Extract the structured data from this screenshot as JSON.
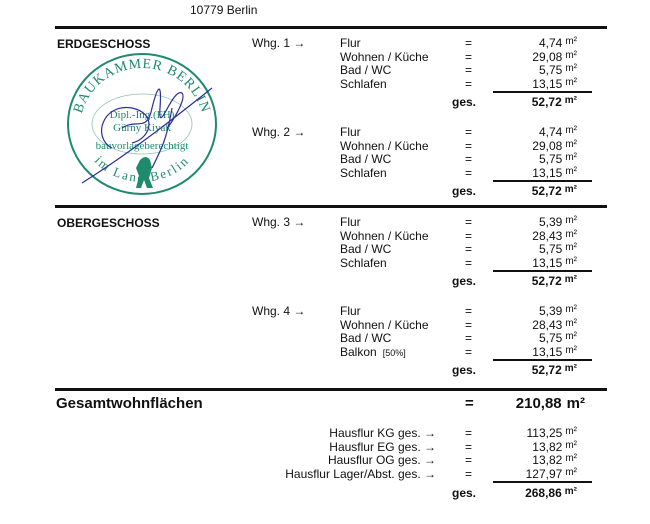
{
  "header": {
    "address": "10779 Berlin"
  },
  "sections": [
    {
      "title": "ERDGESCHOSS",
      "units": [
        {
          "label": "Whg. 1 →",
          "rooms": [
            [
              "Flur",
              "4,74"
            ],
            [
              "Wohnen / Küche",
              "29,08"
            ],
            [
              "Bad / WC",
              "5,75"
            ],
            [
              "Schlafen",
              "13,15"
            ]
          ],
          "total": "52,72"
        },
        {
          "label": "Whg. 2 →",
          "rooms": [
            [
              "Flur",
              "4,74"
            ],
            [
              "Wohnen / Küche",
              "29,08"
            ],
            [
              "Bad / WC",
              "5,75"
            ],
            [
              "Schlafen",
              "13,15"
            ]
          ],
          "total": "52,72"
        }
      ]
    },
    {
      "title": "OBERGESCHOSS",
      "units": [
        {
          "label": "Whg. 3 →",
          "rooms": [
            [
              "Flur",
              "5,39"
            ],
            [
              "Wohnen / Küche",
              "28,43"
            ],
            [
              "Bad / WC",
              "5,75"
            ],
            [
              "Schlafen",
              "13,15"
            ]
          ],
          "total": "52,72"
        },
        {
          "label": "Whg. 4 →",
          "rooms": [
            [
              "Flur",
              "5,39"
            ],
            [
              "Wohnen / Küche",
              "28,43"
            ],
            [
              "Bad / WC",
              "5,75"
            ],
            [
              "Balkon",
              "13,15",
              "[50%]"
            ]
          ],
          "total": "52,72"
        }
      ]
    }
  ],
  "summary": {
    "label": "Gesamtwohnflächen",
    "eq": "=",
    "value": "210,88"
  },
  "hallways": {
    "rows": [
      [
        "Hausflur KG ges. →",
        "113,25"
      ],
      [
        "Hausflur EG ges. →",
        "13,82"
      ],
      [
        "Hausflur OG ges. →",
        "13,82"
      ],
      [
        "Hausflur Lager/Abst. ges. →",
        "127,97"
      ]
    ],
    "total": "268,86"
  },
  "labels": {
    "eq": "=",
    "ges": "ges.",
    "unit": "m²"
  },
  "stamp": {
    "top": "BAUKAMMER BERLIN",
    "bottom": "im Land Berlin",
    "line1": "Dipl.-Ing.(FH)",
    "line2": "Gürny Kiyak",
    "line3": "bauvorlageberechtigt",
    "color": "#1f8a6c",
    "signature_color": "#2b2f9a"
  }
}
